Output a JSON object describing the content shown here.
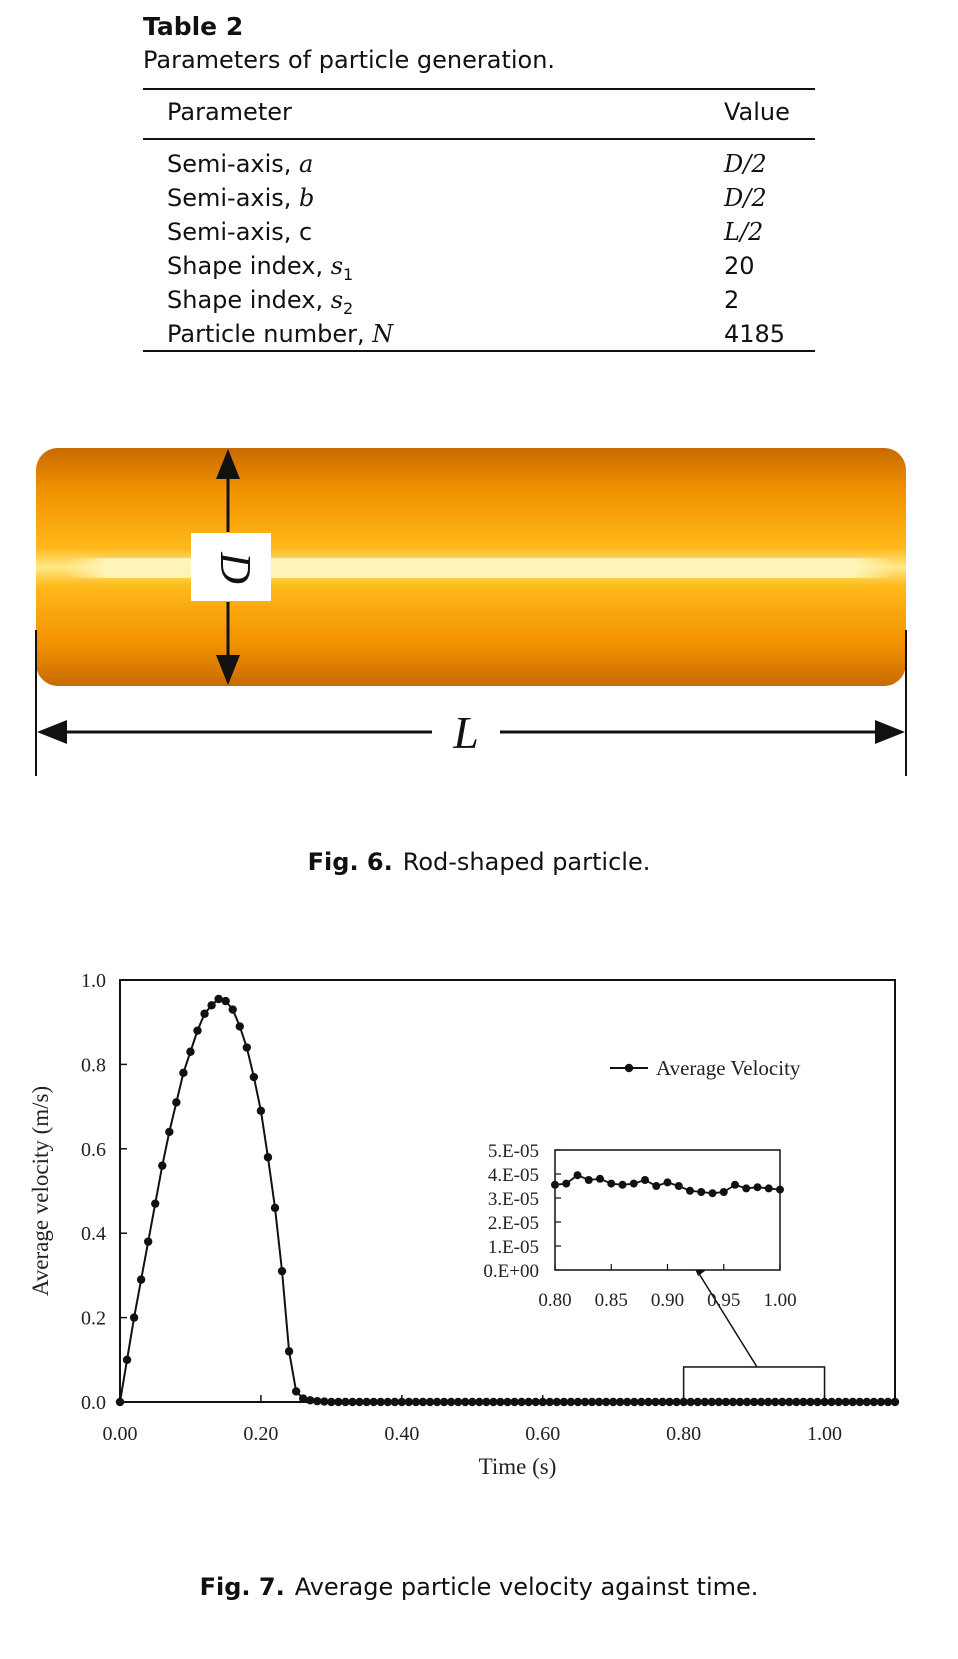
{
  "table": {
    "title": "Table 2",
    "subtitle": "Parameters of particle generation.",
    "header": {
      "param": "Parameter",
      "value": "Value"
    },
    "rows": [
      {
        "label": "Semi-axis, ",
        "symbol": "a",
        "sub": "",
        "value": "D/2"
      },
      {
        "label": "Semi-axis, ",
        "symbol": "b",
        "sub": "",
        "value": "D/2"
      },
      {
        "label": "Semi-axis, c",
        "symbol": "",
        "sub": "",
        "value": "L/2"
      },
      {
        "label": "Shape index, ",
        "symbol": "s",
        "sub": "1",
        "value": "20"
      },
      {
        "label": "Shape index, ",
        "symbol": "s",
        "sub": "2",
        "value": "2"
      },
      {
        "label": "Particle number, ",
        "symbol": "N",
        "sub": "",
        "value": "4185"
      }
    ]
  },
  "figure6": {
    "label_d": "D",
    "label_l": "L",
    "caption_num": "Fig. 6.",
    "caption_text": "Rod-shaped particle.",
    "colors": {
      "rod": "#f49a00",
      "highlight": "#fff2a8"
    }
  },
  "figure7": {
    "caption_num": "Fig. 7.",
    "caption_text": "Average particle velocity against time.",
    "chart_data": [
      {
        "type": "line",
        "xlabel": "Time (s)",
        "ylabel": "Average velocity (m/s)",
        "xlim": [
          0,
          1.1
        ],
        "ylim": [
          0,
          1.0
        ],
        "xticks": [
          "0.00",
          "0.20",
          "0.40",
          "0.60",
          "0.80",
          "1.00"
        ],
        "yticks": [
          "0.0",
          "0.2",
          "0.4",
          "0.6",
          "0.8",
          "1.0"
        ],
        "legend": "top-right",
        "series": [
          {
            "name": "Average Velocity",
            "x": [
              0.0,
              0.01,
              0.02,
              0.03,
              0.04,
              0.05,
              0.06,
              0.07,
              0.08,
              0.09,
              0.1,
              0.11,
              0.12,
              0.13,
              0.14,
              0.15,
              0.16,
              0.17,
              0.18,
              0.19,
              0.2,
              0.21,
              0.22,
              0.23,
              0.24,
              0.25,
              0.26,
              0.27,
              0.28,
              0.29,
              0.3,
              0.31,
              0.32,
              0.33,
              0.34,
              0.35,
              0.36,
              0.37,
              0.38,
              0.39,
              0.4,
              0.41,
              0.42,
              0.43,
              0.44,
              0.45,
              0.46,
              0.47,
              0.48,
              0.49,
              0.5,
              0.51,
              0.52,
              0.53,
              0.54,
              0.55,
              0.56,
              0.57,
              0.58,
              0.59,
              0.6,
              0.61,
              0.62,
              0.63,
              0.64,
              0.65,
              0.66,
              0.67,
              0.68,
              0.69,
              0.7,
              0.71,
              0.72,
              0.73,
              0.74,
              0.75,
              0.76,
              0.77,
              0.78,
              0.79,
              0.8,
              0.81,
              0.82,
              0.83,
              0.84,
              0.85,
              0.86,
              0.87,
              0.88,
              0.89,
              0.9,
              0.91,
              0.92,
              0.93,
              0.94,
              0.95,
              0.96,
              0.97,
              0.98,
              0.99,
              1.0,
              1.01,
              1.02,
              1.03,
              1.04,
              1.05,
              1.06,
              1.07,
              1.08,
              1.09,
              1.1
            ],
            "y": [
              0.0,
              0.1,
              0.2,
              0.29,
              0.38,
              0.47,
              0.56,
              0.64,
              0.71,
              0.78,
              0.83,
              0.88,
              0.92,
              0.94,
              0.955,
              0.95,
              0.93,
              0.89,
              0.84,
              0.77,
              0.69,
              0.58,
              0.46,
              0.31,
              0.12,
              0.025,
              0.008,
              0.004,
              0.002,
              0.001,
              0,
              0,
              0,
              0,
              0,
              0,
              0,
              0,
              0,
              0,
              0,
              0,
              0,
              0,
              0,
              0,
              0,
              0,
              0,
              0,
              0,
              0,
              0,
              0,
              0,
              0,
              0,
              0,
              0,
              0,
              0,
              0,
              0,
              0,
              0,
              0,
              0,
              0,
              0,
              0,
              0,
              0,
              0,
              0,
              0,
              0,
              0,
              0,
              0,
              0,
              0,
              0,
              0,
              0,
              0,
              0,
              0,
              0,
              0,
              0,
              0,
              0,
              0,
              0,
              0,
              0,
              0,
              0,
              0,
              0,
              0,
              0,
              0,
              0,
              0,
              0,
              0,
              0,
              0,
              0,
              0
            ]
          }
        ]
      },
      {
        "type": "line",
        "xlim": [
          0.8,
          1.0
        ],
        "ylim": [
          0,
          5e-05
        ],
        "xticks": [
          "0.80",
          "0.85",
          "0.90",
          "0.95",
          "1.00"
        ],
        "yticks": [
          "0.E+00",
          "1.E-05",
          "2.E-05",
          "3.E-05",
          "4.E-05",
          "5.E-05"
        ],
        "series": [
          {
            "x": [
              0.8,
              0.81,
              0.82,
              0.83,
              0.84,
              0.85,
              0.86,
              0.87,
              0.88,
              0.89,
              0.9,
              0.91,
              0.92,
              0.93,
              0.94,
              0.95,
              0.96,
              0.97,
              0.98,
              0.99,
              1.0
            ],
            "y": [
              3.55e-05,
              3.6e-05,
              3.95e-05,
              3.75e-05,
              3.8e-05,
              3.6e-05,
              3.55e-05,
              3.6e-05,
              3.75e-05,
              3.5e-05,
              3.65e-05,
              3.5e-05,
              3.3e-05,
              3.25e-05,
              3.2e-05,
              3.25e-05,
              3.55e-05,
              3.4e-05,
              3.45e-05,
              3.4e-05,
              3.35e-05
            ]
          }
        ]
      }
    ]
  }
}
